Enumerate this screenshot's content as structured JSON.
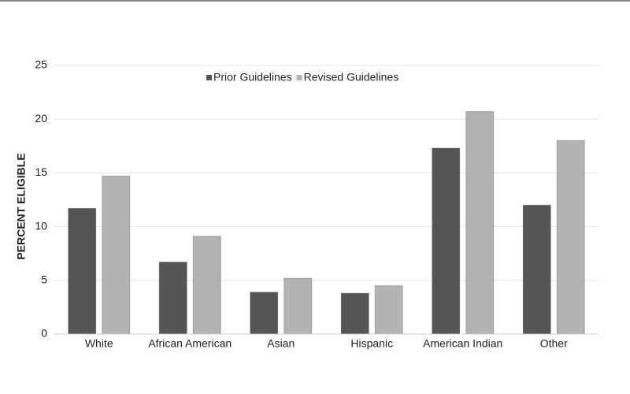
{
  "chart_data": {
    "type": "bar",
    "y_label": "PERCENT ELIGIBLE",
    "categories": [
      "White",
      "African American",
      "Asian",
      "Hispanic",
      "American Indian",
      "Other"
    ],
    "series": [
      {
        "name": "Prior Guidelines",
        "color": "#555555",
        "values": [
          11.7,
          6.7,
          3.9,
          3.8,
          17.3,
          12.0
        ]
      },
      {
        "name": "Revised Guidelines",
        "color": "#b3b3b3",
        "values": [
          14.7,
          9.1,
          5.2,
          4.5,
          20.7,
          18.0
        ]
      }
    ],
    "ylim": [
      0,
      25
    ],
    "yticks": [
      0,
      5,
      10,
      15,
      20,
      25
    ],
    "grid": true
  }
}
